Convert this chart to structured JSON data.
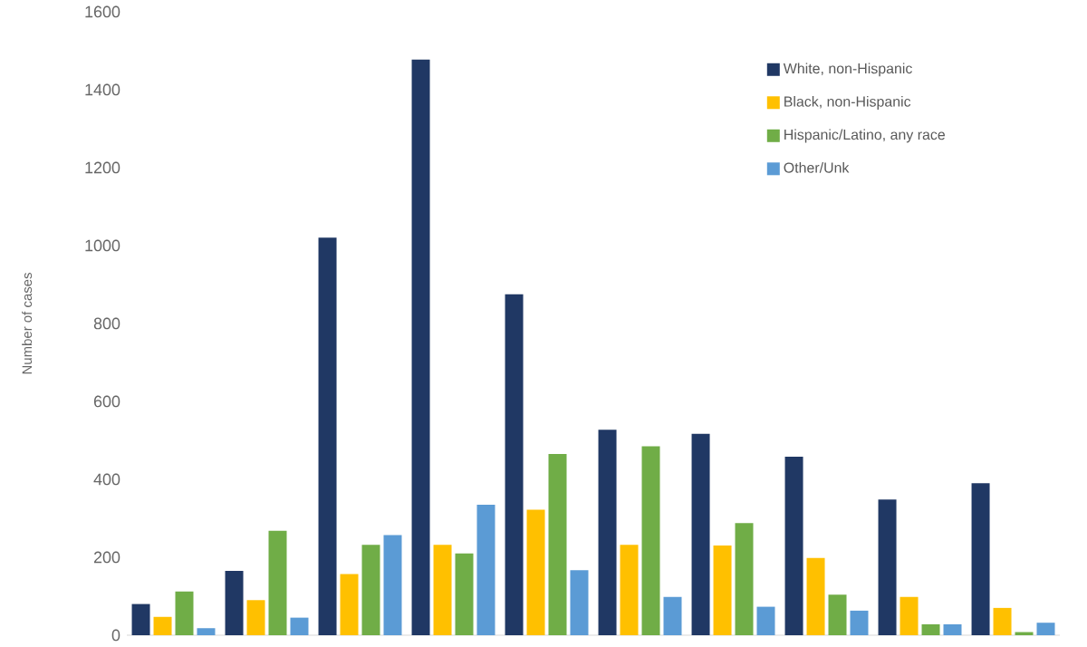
{
  "chart_data": {
    "type": "bar",
    "ylabel": "Number of cases",
    "categories": [
      null,
      null,
      null,
      null,
      null,
      null,
      null,
      null,
      null,
      null
    ],
    "series": [
      {
        "name": "White, non-Hispanic",
        "color": "#203864",
        "values": [
          80,
          165,
          1020,
          1477,
          875,
          527,
          517,
          458,
          348,
          390
        ]
      },
      {
        "name": "Black, non-Hispanic",
        "color": "#ffc000",
        "values": [
          47,
          90,
          157,
          232,
          322,
          232,
          230,
          198,
          98,
          70
        ]
      },
      {
        "name": "Hispanic/Latino, any race",
        "color": "#70ad47",
        "values": [
          112,
          268,
          232,
          210,
          465,
          485,
          288,
          104,
          28,
          8
        ]
      },
      {
        "name": "Other/Unk",
        "color": "#5b9bd5",
        "values": [
          18,
          45,
          257,
          335,
          167,
          98,
          73,
          63,
          28,
          32
        ]
      }
    ],
    "ylim": [
      0,
      1600
    ],
    "yticks": [
      0,
      200,
      400,
      600,
      800,
      1000,
      1200,
      1400,
      1600
    ],
    "legend": "top right"
  }
}
